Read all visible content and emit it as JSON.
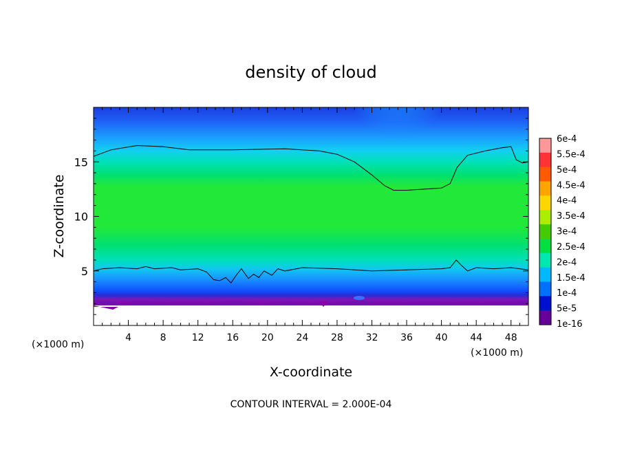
{
  "chart_data": {
    "type": "heatmap",
    "title": "density of cloud",
    "xlabel": "X-coordinate",
    "ylabel": "Z-coordinate",
    "x_unit_left": "(×1000 m)",
    "x_unit_right": "(×1000 m)",
    "xlim": [
      0,
      50
    ],
    "ylim": [
      0,
      20
    ],
    "x_ticks": [
      4,
      8,
      12,
      16,
      20,
      24,
      28,
      32,
      36,
      40,
      44,
      48
    ],
    "y_ticks": [
      5,
      10,
      15
    ],
    "footer": "CONTOUR INTERVAL = 2.000E-04",
    "colorbar": {
      "labels": [
        "6e-4",
        "5.5e-4",
        "5e-4",
        "4.5e-4",
        "4e-4",
        "3.5e-4",
        "3e-4",
        "2.5e-4",
        "2e-4",
        "1.5e-4",
        "1e-4",
        "5e-5",
        "1e-16"
      ],
      "colors": [
        "#ff9999",
        "#ff3333",
        "#ff5a00",
        "#ffa500",
        "#ffd700",
        "#aaee00",
        "#44cc00",
        "#00e040",
        "#00e8b0",
        "#00b8ff",
        "#0070ff",
        "#0010d0",
        "#660099"
      ]
    },
    "contour_level": 0.0002,
    "upper_contour": [
      [
        0,
        15.5
      ],
      [
        2,
        16.1
      ],
      [
        5,
        16.5
      ],
      [
        8,
        16.4
      ],
      [
        11,
        16.1
      ],
      [
        16,
        16.1
      ],
      [
        22,
        16.2
      ],
      [
        26,
        16.0
      ],
      [
        28,
        15.7
      ],
      [
        30,
        15.0
      ],
      [
        32,
        13.8
      ],
      [
        33.5,
        12.8
      ],
      [
        34.5,
        12.4
      ],
      [
        36,
        12.4
      ],
      [
        38,
        12.5
      ],
      [
        40,
        12.6
      ],
      [
        41,
        13.0
      ],
      [
        41.8,
        14.5
      ],
      [
        43,
        15.6
      ],
      [
        45,
        16.0
      ],
      [
        47,
        16.3
      ],
      [
        48,
        16.4
      ],
      [
        48.6,
        15.2
      ],
      [
        49.3,
        14.9
      ],
      [
        50,
        15.0
      ]
    ],
    "lower_contour": [
      [
        0,
        5.0
      ],
      [
        1,
        5.2
      ],
      [
        3,
        5.3
      ],
      [
        5,
        5.2
      ],
      [
        6,
        5.4
      ],
      [
        7,
        5.2
      ],
      [
        9,
        5.3
      ],
      [
        10,
        5.1
      ],
      [
        12,
        5.2
      ],
      [
        13,
        4.9
      ],
      [
        13.8,
        4.2
      ],
      [
        14.5,
        4.1
      ],
      [
        15.2,
        4.4
      ],
      [
        15.8,
        3.9
      ],
      [
        16.4,
        4.6
      ],
      [
        17,
        5.2
      ],
      [
        17.8,
        4.3
      ],
      [
        18.4,
        4.7
      ],
      [
        19,
        4.4
      ],
      [
        19.6,
        5.0
      ],
      [
        20.5,
        4.6
      ],
      [
        21.2,
        5.2
      ],
      [
        22,
        5.0
      ],
      [
        24,
        5.3
      ],
      [
        28,
        5.2
      ],
      [
        32,
        5.0
      ],
      [
        36,
        5.1
      ],
      [
        40,
        5.2
      ],
      [
        41,
        5.3
      ],
      [
        41.7,
        6.0
      ],
      [
        42.3,
        5.5
      ],
      [
        43,
        5.0
      ],
      [
        44,
        5.3
      ],
      [
        46,
        5.2
      ],
      [
        48,
        5.3
      ],
      [
        50,
        5.1
      ]
    ]
  }
}
